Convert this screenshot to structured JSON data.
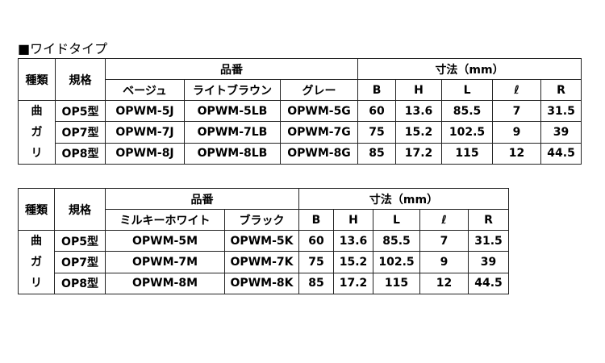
{
  "section_title": "■ワイドタイプ",
  "table1": {
    "h_kind": "種類",
    "h_spec": "規格",
    "h_part": "品番",
    "h_dim": "寸法（mm）",
    "colors": [
      "ベージュ",
      "ライトブラウン",
      "グレー"
    ],
    "dims": [
      "B",
      "H",
      "L",
      "ℓ",
      "R"
    ],
    "kind": [
      "曲",
      "ガ",
      "リ"
    ],
    "rows": [
      [
        "OP5型",
        "OPWM-5J",
        "OPWM-5LB",
        "OPWM-5G",
        "60",
        "13.6",
        "85.5",
        "7",
        "31.5"
      ],
      [
        "OP7型",
        "OPWM-7J",
        "OPWM-7LB",
        "OPWM-7G",
        "75",
        "15.2",
        "102.5",
        "9",
        "39"
      ],
      [
        "OP8型",
        "OPWM-8J",
        "OPWM-8LB",
        "OPWM-8G",
        "85",
        "17.2",
        "115",
        "12",
        "44.5"
      ]
    ]
  },
  "table2": {
    "h_kind": "種類",
    "h_spec": "規格",
    "h_part": "品番",
    "h_dim": "寸法（mm）",
    "colors": [
      "ミルキーホワイト",
      "ブラック"
    ],
    "dims": [
      "B",
      "H",
      "L",
      "ℓ",
      "R"
    ],
    "kind": [
      "曲",
      "ガ",
      "リ"
    ],
    "rows": [
      [
        "OP5型",
        "OPWM-5M",
        "OPWM-5K",
        "60",
        "13.6",
        "85.5",
        "7",
        "31.5"
      ],
      [
        "OP7型",
        "OPWM-7M",
        "OPWM-7K",
        "75",
        "15.2",
        "102.5",
        "9",
        "39"
      ],
      [
        "OP8型",
        "OPWM-8M",
        "OPWM-8K",
        "85",
        "17.2",
        "115",
        "12",
        "44.5"
      ]
    ]
  }
}
